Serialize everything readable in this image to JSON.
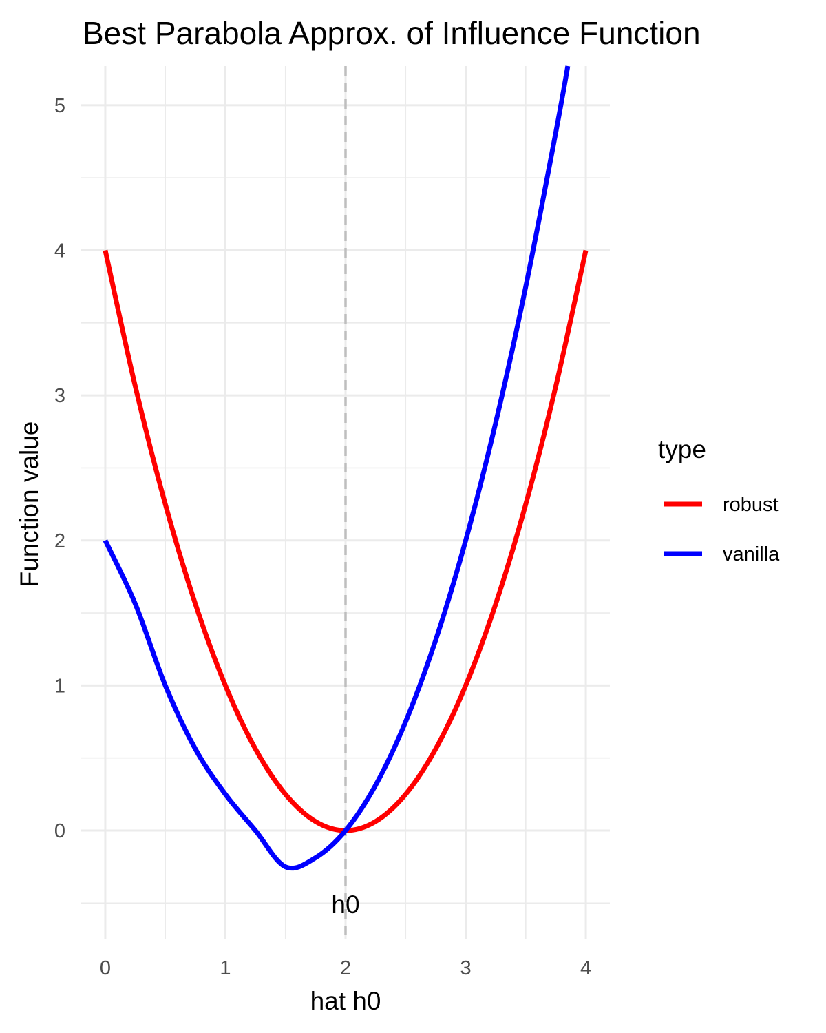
{
  "chart_data": {
    "type": "line",
    "title": "Best Parabola Approx. of Influence Function",
    "xlabel": "hat h0",
    "ylabel": "Function value",
    "xlim": [
      -0.2,
      4.2
    ],
    "ylim": [
      -0.75,
      5.27
    ],
    "x_ticks": [
      0,
      1,
      2,
      3,
      4
    ],
    "y_ticks": [
      0,
      1,
      2,
      3,
      4,
      5
    ],
    "grid": true,
    "legend": {
      "title": "type",
      "placement": "right"
    },
    "series": [
      {
        "name": "robust",
        "color": "#ff0000",
        "x": [
          0,
          0.25,
          0.5,
          0.75,
          1,
          1.25,
          1.5,
          1.75,
          2,
          2.25,
          2.5,
          2.75,
          3,
          3.25,
          3.5,
          3.75,
          4
        ],
        "y": [
          4,
          3.0625,
          2.25,
          1.5625,
          1,
          0.5625,
          0.25,
          0.0625,
          0,
          0.0625,
          0.25,
          0.5625,
          1,
          1.5625,
          2.25,
          3.0625,
          4
        ]
      },
      {
        "name": "vanilla",
        "color": "#0000ff",
        "x": [
          0,
          0.25,
          0.5,
          0.75,
          1,
          1.25,
          1.5,
          1.75,
          2,
          2.25,
          2.5,
          2.75,
          3,
          3.25,
          3.5,
          3.75,
          3.85
        ],
        "y": [
          2,
          1.5625,
          1,
          0.5625,
          0.25,
          0,
          -0.25,
          -0.1875,
          0,
          0.3125,
          0.75,
          1.3125,
          2,
          2.8125,
          3.75,
          4.8125,
          5.27
        ]
      }
    ],
    "reference_line": {
      "x": 2,
      "style": "dashed",
      "color": "#bebebe",
      "label": "h0"
    }
  }
}
